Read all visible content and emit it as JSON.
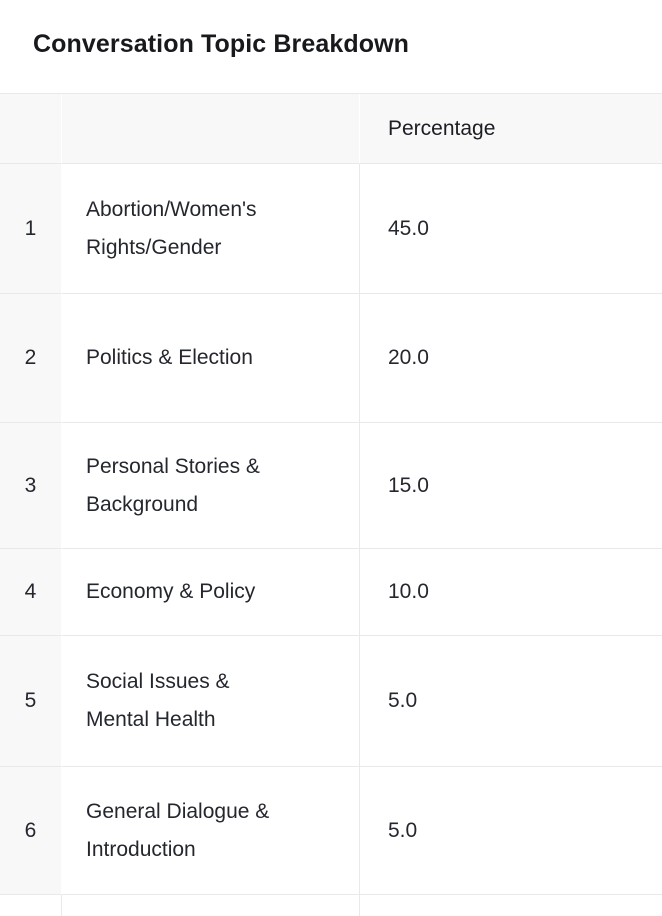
{
  "title": "Conversation Topic Breakdown",
  "table": {
    "header": {
      "index_label": "",
      "topic_label": "",
      "percentage_label": "Percentage"
    },
    "rows": [
      {
        "index": "1",
        "topic": "Abortion/Women's Rights/Gender",
        "percentage": "45.0"
      },
      {
        "index": "2",
        "topic": "Politics & Election",
        "percentage": "20.0"
      },
      {
        "index": "3",
        "topic": "Personal Stories & Background",
        "percentage": "15.0"
      },
      {
        "index": "4",
        "topic": "Economy & Policy",
        "percentage": "10.0"
      },
      {
        "index": "5",
        "topic": "Social Issues & Mental Health",
        "percentage": "5.0"
      },
      {
        "index": "6",
        "topic": "General Dialogue & Introduction",
        "percentage": "5.0"
      }
    ]
  },
  "chart_data": {
    "type": "table",
    "title": "Conversation Topic Breakdown",
    "columns": [
      "",
      "Percentage"
    ],
    "categories": [
      "Abortion/Women's Rights/Gender",
      "Politics & Election",
      "Personal Stories & Background",
      "Economy & Policy",
      "Social Issues & Mental Health",
      "General Dialogue & Introduction"
    ],
    "values": [
      45.0,
      20.0,
      15.0,
      10.0,
      5.0,
      5.0
    ]
  },
  "colors": {
    "page_bg": "#ffffff",
    "header_bg": "#f8f8f9",
    "index_col_bg": "#f8f8f9",
    "border": "#e9e9eb",
    "text": "#24272e",
    "title_text": "#17191d"
  }
}
